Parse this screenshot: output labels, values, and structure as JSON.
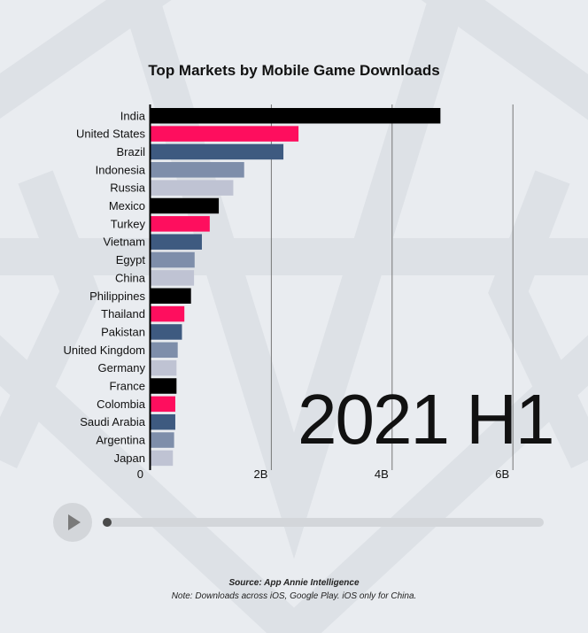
{
  "title": "Top Markets by Mobile Game Downloads",
  "year": "2021 H1",
  "footer": {
    "source": "Source: App Annie Intelligence",
    "note": "Note: Downloads across iOS, Google Play. iOS only for China."
  },
  "player": {
    "progress": 0.0
  },
  "colors": [
    "#000000",
    "#fe0e5e",
    "#3e5a80",
    "#7e8eaa",
    "#bfc3d3"
  ],
  "chart_data": {
    "type": "bar",
    "orientation": "horizontal",
    "title": "Top Markets by Mobile Game Downloads",
    "categories": [
      "India",
      "United States",
      "Brazil",
      "Indonesia",
      "Russia",
      "Mexico",
      "Turkey",
      "Vietnam",
      "Egypt",
      "China",
      "Philippines",
      "Thailand",
      "Pakistan",
      "United Kingdom",
      "Germany",
      "France",
      "Colombia",
      "Saudi Arabia",
      "Argentina",
      "Japan"
    ],
    "values": [
      4.8,
      2.45,
      2.2,
      1.55,
      1.37,
      1.13,
      0.98,
      0.85,
      0.73,
      0.72,
      0.67,
      0.56,
      0.52,
      0.45,
      0.43,
      0.43,
      0.41,
      0.41,
      0.39,
      0.37
    ],
    "value_unit": "B",
    "xlim": [
      0,
      6.0
    ],
    "xticks": [
      {
        "value": 0,
        "label": "0"
      },
      {
        "value": 2,
        "label": "2B"
      },
      {
        "value": 4,
        "label": "4B"
      },
      {
        "value": 6,
        "label": "6B"
      }
    ],
    "grid": true,
    "bar_color_cycle": [
      "#000000",
      "#fe0e5e",
      "#3e5a80",
      "#7e8eaa",
      "#bfc3d3"
    ]
  }
}
